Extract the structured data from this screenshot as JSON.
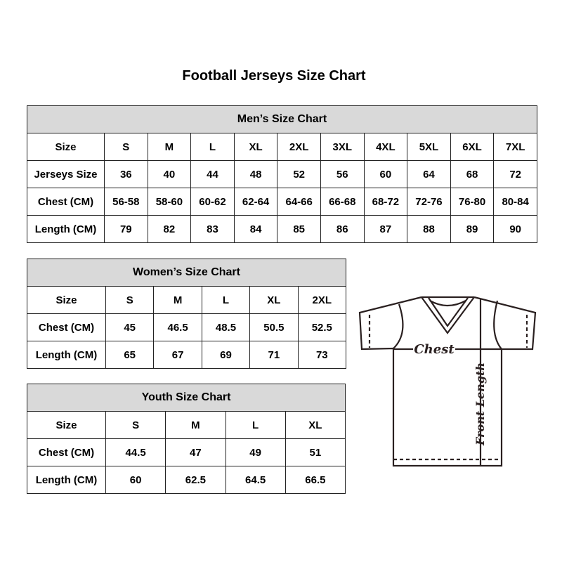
{
  "title": "Football Jerseys Size Chart",
  "men": {
    "heading": "Men’s Size Chart",
    "rows": [
      [
        "Size",
        "S",
        "M",
        "L",
        "XL",
        "2XL",
        "3XL",
        "4XL",
        "5XL",
        "6XL",
        "7XL"
      ],
      [
        "Jerseys Size",
        "36",
        "40",
        "44",
        "48",
        "52",
        "56",
        "60",
        "64",
        "68",
        "72"
      ],
      [
        "Chest (CM)",
        "56-58",
        "58-60",
        "60-62",
        "62-64",
        "64-66",
        "66-68",
        "68-72",
        "72-76",
        "76-80",
        "80-84"
      ],
      [
        "Length (CM)",
        "79",
        "82",
        "83",
        "84",
        "85",
        "86",
        "87",
        "88",
        "89",
        "90"
      ]
    ]
  },
  "women": {
    "heading": "Women’s Size Chart",
    "rows": [
      [
        "Size",
        "S",
        "M",
        "L",
        "XL",
        "2XL"
      ],
      [
        "Chest (CM)",
        "45",
        "46.5",
        "48.5",
        "50.5",
        "52.5"
      ],
      [
        "Length (CM)",
        "65",
        "67",
        "69",
        "71",
        "73"
      ]
    ]
  },
  "youth": {
    "heading": "Youth Size Chart",
    "rows": [
      [
        "Size",
        "S",
        "M",
        "L",
        "XL"
      ],
      [
        "Chest (CM)",
        "44.5",
        "47",
        "49",
        "51"
      ],
      [
        "Length (CM)",
        "60",
        "62.5",
        "64.5",
        "66.5"
      ]
    ]
  },
  "diagram": {
    "chest_label": "Chest",
    "length_label": "Front Length"
  },
  "colors": {
    "header_bg": "#d9d9d9",
    "border": "#222222",
    "line": "#2a2020"
  }
}
